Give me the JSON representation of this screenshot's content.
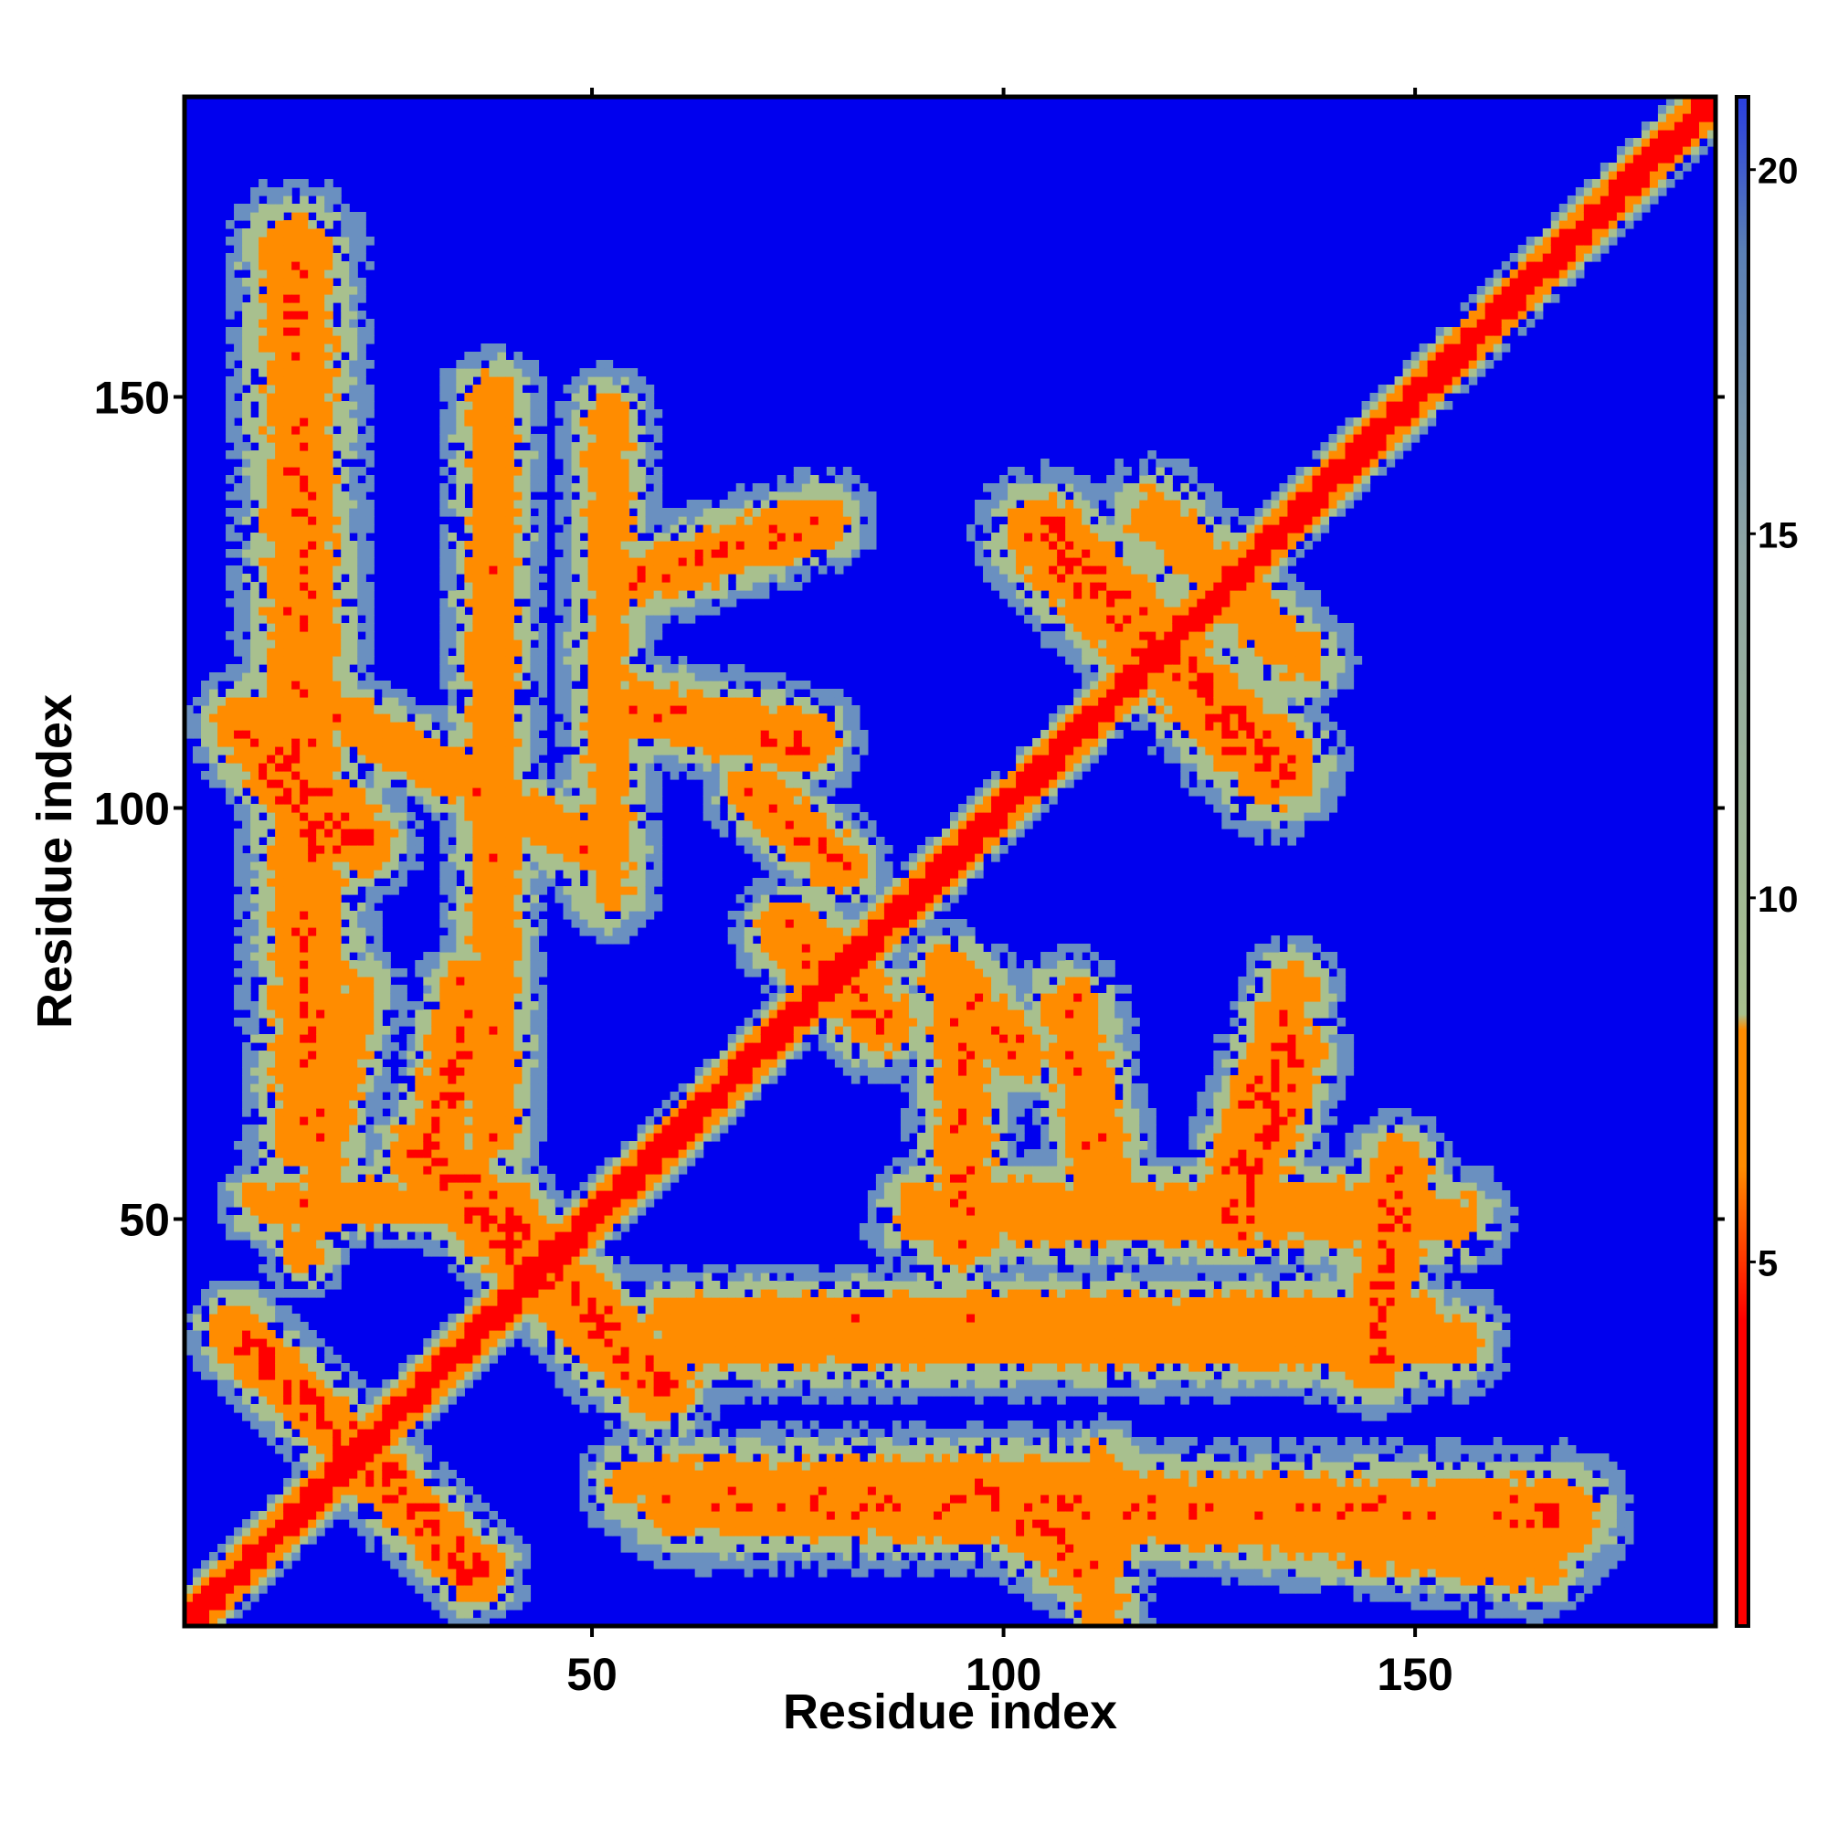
{
  "chart_data": {
    "type": "heatmap",
    "title": "",
    "xlabel": "Residue index",
    "ylabel": "Residue index",
    "n_residues": 186,
    "xlim": [
      1,
      186
    ],
    "ylim": [
      1,
      186
    ],
    "x_ticks": [
      50,
      100,
      150
    ],
    "y_ticks": [
      50,
      100,
      150
    ],
    "x_tick_labels": [
      "50",
      "100",
      "150"
    ],
    "y_tick_labels": [
      "50",
      "100",
      "150"
    ],
    "value_range": [
      0,
      21
    ],
    "colorbar": {
      "ticks": [
        5,
        10,
        15,
        20
      ],
      "tick_labels": [
        "5",
        "10",
        "15",
        "20"
      ],
      "range": [
        0,
        21
      ],
      "colors": [
        "#ff0000",
        "#ff8c00",
        "#a8c08e",
        "#5a7fb4",
        "#0000ee"
      ]
    },
    "colors": {
      "contact_close": "#ff0000",
      "contact_near": "#ff8c00",
      "contact_mid": "#a8c08e",
      "contact_far": "#6a90c0",
      "background": "#0000ee"
    },
    "contact_bands": [
      {
        "name": "diagonal",
        "from": [
          1,
          1
        ],
        "to": [
          186,
          186
        ],
        "width": 2.5,
        "min_dist": 0.5
      },
      {
        "name": "hairpin-1",
        "from": [
          7,
          36
        ],
        "to": [
          36,
          7
        ],
        "width": 4.5,
        "min_dist": 3
      },
      {
        "name": "hairpin-2",
        "from": [
          30,
          58
        ],
        "to": [
          58,
          30
        ],
        "width": 5.5,
        "min_dist": 3
      },
      {
        "name": "antiparallel-3",
        "from": [
          8,
          110
        ],
        "to": [
          22,
          96
        ],
        "width": 5,
        "min_dist": 3.5
      },
      {
        "name": "antiparallel-4",
        "from": [
          18,
          96
        ],
        "to": [
          8,
          110
        ],
        "width": 5,
        "min_dist": 3.5
      },
      {
        "name": "hairpin-5",
        "from": [
          96,
          18
        ],
        "to": [
          110,
          8
        ],
        "width": 5,
        "min_dist": 3.5
      },
      {
        "name": "helix-x-1",
        "from": [
          105,
          133
        ],
        "to": [
          133,
          105
        ],
        "width": 6,
        "min_dist": 3
      },
      {
        "name": "helix-x-2",
        "from": [
          74,
          85
        ],
        "to": [
          85,
          74
        ],
        "width": 5,
        "min_dist": 3.5
      },
      {
        "name": "helix-x-3",
        "from": [
          93,
          80
        ],
        "to": [
          102,
          70
        ],
        "width": 4.5,
        "min_dist": 4
      },
      {
        "name": "helix-x-4",
        "from": [
          80,
          93
        ],
        "to": [
          70,
          102
        ],
        "width": 4.5,
        "min_dist": 4
      },
      {
        "name": "strand-col-1",
        "from": [
          38,
          150
        ],
        "to": [
          38,
          60
        ],
        "width": 4.5,
        "min_dist": 4.5
      },
      {
        "name": "strand-row-1",
        "from": [
          150,
          38
        ],
        "to": [
          60,
          38
        ],
        "width": 4.5,
        "min_dist": 4.5
      },
      {
        "name": "strand-col-2",
        "from": [
          52,
          148
        ],
        "to": [
          52,
          90
        ],
        "width": 4.5,
        "min_dist": 5
      },
      {
        "name": "strand-row-2",
        "from": [
          148,
          52
        ],
        "to": [
          90,
          52
        ],
        "width": 4.5,
        "min_dist": 5
      },
      {
        "name": "strand-col-3",
        "from": [
          14,
          168
        ],
        "to": [
          16,
          60
        ],
        "width": 6,
        "min_dist": 4
      },
      {
        "name": "strand-row-3",
        "from": [
          168,
          14
        ],
        "to": [
          60,
          16
        ],
        "width": 6,
        "min_dist": 4
      },
      {
        "name": "upper-arc-1",
        "from": [
          56,
          128
        ],
        "to": [
          78,
          135
        ],
        "width": 4.5,
        "min_dist": 4
      },
      {
        "name": "lower-arc-1",
        "from": [
          128,
          56
        ],
        "to": [
          135,
          78
        ],
        "width": 4.5,
        "min_dist": 4
      },
      {
        "name": "upper-arc-2",
        "from": [
          56,
          112
        ],
        "to": [
          76,
          108
        ],
        "width": 5,
        "min_dist": 4
      },
      {
        "name": "lower-arc-2",
        "from": [
          112,
          56
        ],
        "to": [
          108,
          76
        ],
        "width": 5,
        "min_dist": 4
      },
      {
        "name": "row-band-lower-1",
        "from": [
          90,
          50
        ],
        "to": [
          155,
          50
        ],
        "width": 5,
        "min_dist": 5
      },
      {
        "name": "row-band-lower-2",
        "from": [
          60,
          35
        ],
        "to": [
          155,
          35
        ],
        "width": 5,
        "min_dist": 5
      },
      {
        "name": "row-band-lower-3",
        "from": [
          55,
          18
        ],
        "to": [
          112,
          18
        ],
        "width": 5,
        "min_dist": 5
      },
      {
        "name": "row-band-lower-4",
        "from": [
          120,
          14
        ],
        "to": [
          165,
          8
        ],
        "width": 5,
        "min_dist": 5
      },
      {
        "name": "col-band-lower-1",
        "from": [
          112,
          20
        ],
        "to": [
          112,
          2
        ],
        "width": 4.5,
        "min_dist": 5
      },
      {
        "name": "col-band-lower-2",
        "from": [
          95,
          78
        ],
        "to": [
          95,
          48
        ],
        "width": 5,
        "min_dist": 4
      },
      {
        "name": "col-band-lower-3",
        "from": [
          135,
          70
        ],
        "to": [
          128,
          50
        ],
        "width": 5,
        "min_dist": 3
      },
      {
        "name": "col-band-lower-4",
        "from": [
          148,
          56
        ],
        "to": [
          145,
          33
        ],
        "width": 5,
        "min_dist": 3.5
      },
      {
        "name": "col-band-upper-1",
        "from": [
          22,
          78
        ],
        "to": [
          15,
          46
        ],
        "width": 4,
        "min_dist": 5
      },
      {
        "name": "col-band-upper-2",
        "from": [
          35,
          78
        ],
        "to": [
          31,
          60
        ],
        "width": 4.5,
        "min_dist": 3.5
      },
      {
        "name": "row-band-upper-1",
        "from": [
          18,
          112
        ],
        "to": [
          50,
          95
        ],
        "width": 4.5,
        "min_dist": 4.5
      },
      {
        "name": "row-band-upper-2",
        "from": [
          10,
          52
        ],
        "to": [
          40,
          52
        ],
        "width": 4,
        "min_dist": 4.5
      },
      {
        "name": "sheet-upper-right",
        "from": [
          118,
          136
        ],
        "to": [
          136,
          118
        ],
        "width": 5,
        "min_dist": 5
      }
    ]
  }
}
